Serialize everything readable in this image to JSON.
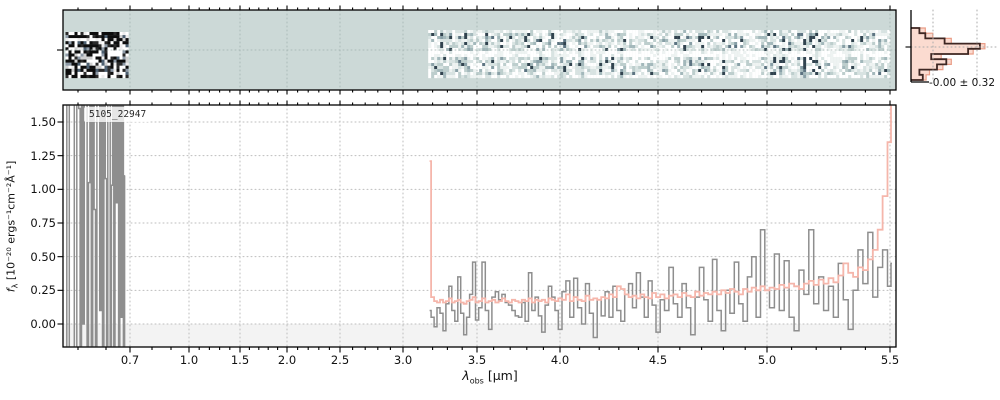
{
  "figure": {
    "source_label": "5105_22947",
    "background": "#ffffff"
  },
  "axes": {
    "xlabel": {
      "prefix": "λ",
      "sub": "obs",
      "suffix": " [μm]"
    },
    "ylabel": {
      "prefix": "f",
      "sub": "λ",
      "suffix": " [10⁻²⁰ ergs⁻¹cm⁻²Å⁻¹]"
    },
    "x_major_ticks": {
      "values": [
        0.7,
        1.0,
        1.5,
        2.0,
        2.5,
        3.0,
        3.5,
        4.0,
        4.5,
        5.0,
        5.5
      ],
      "labels": [
        "0.7",
        "1.0",
        "1.5",
        "2.0",
        "2.5",
        "3.0",
        "3.5",
        "4.0",
        "4.5",
        "5.0",
        "5.5"
      ]
    },
    "x_minor_step": 0.1,
    "y_major_ticks": {
      "values": [
        0.0,
        0.25,
        0.5,
        0.75,
        1.0,
        1.25,
        1.5
      ],
      "labels": [
        "0.00",
        "0.25",
        "0.50",
        "0.75",
        "1.00",
        "1.25",
        "1.50"
      ]
    },
    "xlim": [
      0.47,
      5.56
    ],
    "ylim": [
      -0.17,
      1.63
    ]
  },
  "colors": {
    "flux": "#8e8e8e",
    "error": "#f5b6ab",
    "twod_background": "#ccd9d7",
    "below_zero_band": "#f3f3f3",
    "grid": "#bdbdbd",
    "twod_grid": "#9fb0ae",
    "hist_dark": "#3e2723",
    "hist_fill": "#fbdbd0",
    "hist_edge": "#ea9e88",
    "spine": "#000000",
    "text": "#1a1a1a"
  },
  "histogram_panel": {
    "annotation": "-0.00 ± 0.32",
    "bins_dark": [
      0.1,
      0.17,
      0.4,
      0.82,
      0.68,
      0.24,
      0.42,
      0.31,
      0.1,
      0.14
    ],
    "bins_pink": [
      0.17,
      0.26,
      0.48,
      0.88,
      0.74,
      0.36,
      0.48,
      0.38,
      0.22,
      0.18
    ]
  },
  "chart_data": {
    "type": "line",
    "title": "5105_22947",
    "xlabel": "λ_obs [μm]",
    "ylabel": "f_λ [10^-20 ergs^-1 cm^-2 Å^-1]",
    "xlim": [
      0.47,
      5.56
    ],
    "ylim": [
      -0.17,
      1.63
    ],
    "x_scale": "nonlinear (compressed around 1.5-2 μm, stretched toward both ends)",
    "grid": "dotted, at all major ticks",
    "legend": "none",
    "series": [
      {
        "name": "flux_short_wavelength_noise",
        "style": "steps-mid",
        "color": "#8e8e8e",
        "x_start": 0.475,
        "x_step": 0.005,
        "y": [
          1.7,
          -0.2,
          1.7,
          1.7,
          -0.2,
          1.7,
          1.6,
          -0.2,
          1.7,
          0.0,
          1.7,
          1.7,
          -0.2,
          1.05,
          1.7,
          -0.2,
          1.7,
          0.85,
          -0.2,
          1.7,
          1.7,
          0.1,
          1.7,
          -0.2,
          1.7,
          1.08,
          -0.2,
          1.7,
          1.65,
          -0.2,
          1.03,
          1.7,
          -0.2,
          1.7,
          0.9,
          1.7,
          -0.2,
          1.7,
          0.05,
          1.7,
          -0.2,
          1.1
        ]
      },
      {
        "name": "flux",
        "style": "steps-mid",
        "color": "#8e8e8e",
        "x_start": 3.18,
        "x_step": 0.02,
        "y": [
          0.1,
          0.05,
          -0.02,
          0.12,
          0.08,
          -0.05,
          0.15,
          0.28,
          0.1,
          0.02,
          0.35,
          0.08,
          -0.08,
          0.05,
          0.22,
          0.46,
          0.03,
          0.12,
          0.46,
          0.1,
          -0.04,
          0.2,
          0.24,
          0.18,
          0.22,
          0.16,
          0.14,
          0.1,
          0.06,
          0.05,
          0.16,
          0.02,
          0.38,
          0.1,
          0.2,
          0.06,
          -0.06,
          0.14,
          0.28,
          0.2,
          0.1,
          -0.04,
          0.24,
          0.32,
          0.05,
          0.34,
          0.12,
          0.0,
          0.3,
          0.08,
          -0.1,
          0.18,
          0.06,
          0.24,
          0.05,
          0.28,
          0.1,
          0.02,
          0.22,
          0.3,
          0.12,
          0.38,
          0.2,
          0.05,
          0.32,
          0.14,
          -0.06,
          0.18,
          0.1,
          0.42,
          0.15,
          0.05,
          0.3,
          0.12,
          -0.08,
          0.2,
          0.42,
          0.18,
          0.02,
          0.48,
          0.1,
          -0.05,
          0.25,
          0.08,
          0.46,
          0.15,
          0.02,
          0.35,
          0.5,
          0.05,
          0.7,
          0.25,
          0.12,
          0.52,
          0.1,
          0.47,
          0.05,
          -0.05,
          0.4,
          0.22,
          0.7,
          0.15,
          0.35,
          0.1,
          0.28,
          0.05,
          0.45,
          0.18,
          -0.04,
          0.25,
          0.55,
          0.3,
          0.68,
          0.2,
          0.42,
          0.55,
          0.28,
          0.45
        ]
      },
      {
        "name": "error",
        "style": "steps-mid",
        "color": "#f5b6ab",
        "x_start": 3.18,
        "x_step": 0.02,
        "y": [
          1.21,
          0.2,
          0.17,
          0.16,
          0.18,
          0.16,
          0.17,
          0.19,
          0.16,
          0.17,
          0.18,
          0.16,
          0.15,
          0.17,
          0.18,
          0.2,
          0.16,
          0.17,
          0.19,
          0.16,
          0.17,
          0.18,
          0.16,
          0.17,
          0.19,
          0.17,
          0.16,
          0.18,
          0.17,
          0.16,
          0.18,
          0.17,
          0.19,
          0.16,
          0.18,
          0.17,
          0.18,
          0.16,
          0.19,
          0.18,
          0.17,
          0.19,
          0.18,
          0.22,
          0.17,
          0.2,
          0.18,
          0.17,
          0.21,
          0.18,
          0.19,
          0.18,
          0.2,
          0.19,
          0.22,
          0.2,
          0.28,
          0.26,
          0.22,
          0.2,
          0.21,
          0.19,
          0.22,
          0.2,
          0.19,
          0.23,
          0.2,
          0.22,
          0.19,
          0.21,
          0.22,
          0.2,
          0.23,
          0.21,
          0.2,
          0.24,
          0.21,
          0.23,
          0.22,
          0.24,
          0.22,
          0.25,
          0.23,
          0.26,
          0.24,
          0.22,
          0.26,
          0.24,
          0.27,
          0.25,
          0.28,
          0.25,
          0.27,
          0.26,
          0.29,
          0.27,
          0.3,
          0.28,
          0.26,
          0.3,
          0.32,
          0.29,
          0.33,
          0.3,
          0.34,
          0.31,
          0.36,
          0.45,
          0.38,
          0.35,
          0.42,
          0.4,
          0.48,
          0.55,
          0.7,
          0.95,
          1.35,
          1.7
        ]
      }
    ],
    "histogram": {
      "orientation": "horizontal",
      "position": "top-right",
      "annotation": "-0.00 ± 0.32"
    },
    "twod_regions": [
      {
        "lambda_min": 0.475,
        "lambda_max": 0.7,
        "style": "high_contrast"
      },
      {
        "lambda_min": 3.17,
        "lambda_max": 5.51,
        "style": "pale_teal"
      }
    ]
  }
}
